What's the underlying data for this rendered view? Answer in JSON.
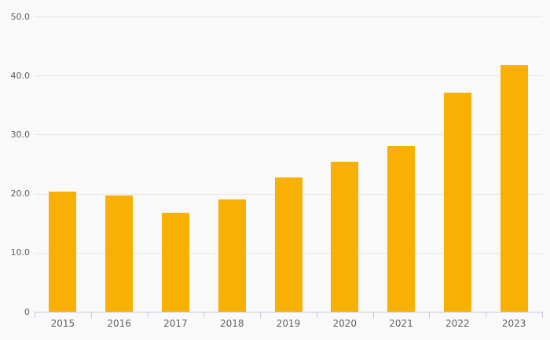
{
  "chart_data": {
    "type": "bar",
    "title": "",
    "xlabel": "",
    "ylabel": "",
    "categories": [
      "2015",
      "2016",
      "2017",
      "2018",
      "2019",
      "2020",
      "2021",
      "2022",
      "2023"
    ],
    "values": [
      20.3,
      19.7,
      16.8,
      19.0,
      22.7,
      25.4,
      28.0,
      37.1,
      41.8
    ],
    "ylim": [
      0,
      50
    ],
    "yticks": [
      0,
      10,
      20,
      30,
      40,
      50
    ],
    "ytick_labels": [
      "0",
      "10.0",
      "20.0",
      "30.0",
      "40.0",
      "50.0"
    ],
    "grid": true,
    "legend": false
  },
  "colors": {
    "background": "#f9f9f9",
    "bar": "#f9b005",
    "gridline": "#e6e6e6",
    "axis": "#c2cbde",
    "text": "#606060"
  }
}
